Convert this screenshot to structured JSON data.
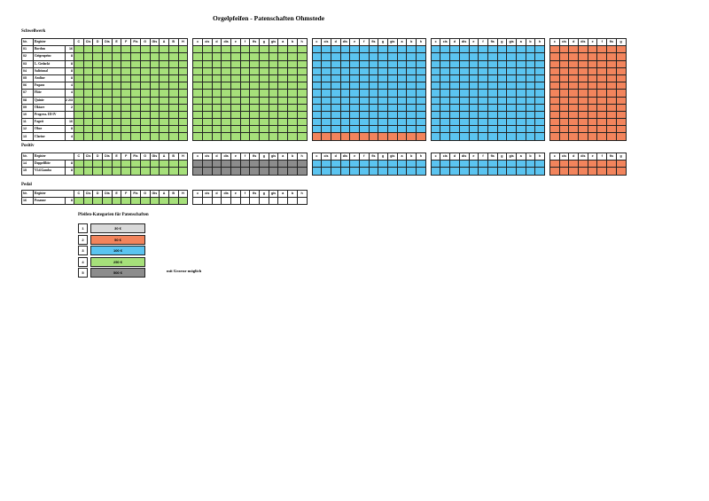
{
  "title": "Orgelpfeifen - Patenschaften  Ohmstede",
  "sections": {
    "schwellwerk": "Schwellwerk",
    "positiv": "Positiv",
    "pedal": "Pedal"
  },
  "header": {
    "nr": "Nr.",
    "register": "Register",
    "blocks": [
      [
        "C",
        "Cis",
        "D",
        "Dis",
        "E",
        "F",
        "Fis",
        "G",
        "Gis",
        "A",
        "B",
        "H"
      ],
      [
        "c",
        "cis",
        "d",
        "dis",
        "e",
        "f",
        "fis",
        "g",
        "gis",
        "a",
        "b",
        "h"
      ],
      [
        "c",
        "cis",
        "d",
        "dis",
        "e",
        "f",
        "fis",
        "g",
        "gis",
        "a",
        "b",
        "h"
      ],
      [
        "c",
        "cis",
        "d",
        "dis",
        "e",
        "f",
        "fis",
        "g",
        "gis",
        "a",
        "b",
        "h"
      ],
      [
        "c",
        "cis",
        "d",
        "dis",
        "e",
        "f",
        "fis",
        "g"
      ]
    ]
  },
  "schwellwerk_rows": [
    {
      "nr": "01",
      "name": "Bordun",
      "ft": "16"
    },
    {
      "nr": "02",
      "name": "Geigenprinc",
      "ft": "8"
    },
    {
      "nr": "03",
      "name": "L. Gedackt",
      "ft": "8"
    },
    {
      "nr": "04",
      "name": "Salicional",
      "ft": "8"
    },
    {
      "nr": "05",
      "name": "Aeoline",
      "ft": "8"
    },
    {
      "nr": "06",
      "name": "Fugara",
      "ft": "4"
    },
    {
      "nr": "07",
      "name": "Flöte",
      "ft": "4"
    },
    {
      "nr": "08",
      "name": "Quinte",
      "ft": "2 2/3"
    },
    {
      "nr": "09",
      "name": "Oktave",
      "ft": "2"
    },
    {
      "nr": "10",
      "name": "Progress. III-IV",
      "ft": ""
    },
    {
      "nr": "11",
      "name": "Fagott",
      "ft": "16"
    },
    {
      "nr": "12",
      "name": "Oboe",
      "ft": "8"
    },
    {
      "nr": "13",
      "name": "Clarine",
      "ft": "4"
    }
  ],
  "positiv_rows": [
    {
      "nr": "14",
      "name": "Doppelflöte",
      "ft": "8"
    },
    {
      "nr": "15",
      "name": "Vl.d.Gamba",
      "ft": "8"
    }
  ],
  "pedal_rows": [
    {
      "nr": "16",
      "name": "Posaune",
      "ft": "8"
    }
  ],
  "legend": {
    "title": "Pfeifen-Kategorien für Patenschaften",
    "items": [
      {
        "num": "1",
        "price": "30 €",
        "color": "#d9d9d9"
      },
      {
        "num": "2",
        "price": "50 €",
        "color": "#f2845c"
      },
      {
        "num": "3",
        "price": "100 €",
        "color": "#5bc4f0"
      },
      {
        "num": "4",
        "price": "250 €",
        "color": "#a6e07a"
      },
      {
        "num": "5",
        "price": "500 €",
        "color": "#8c8c8c"
      }
    ],
    "note": "mit Gravur möglich"
  }
}
